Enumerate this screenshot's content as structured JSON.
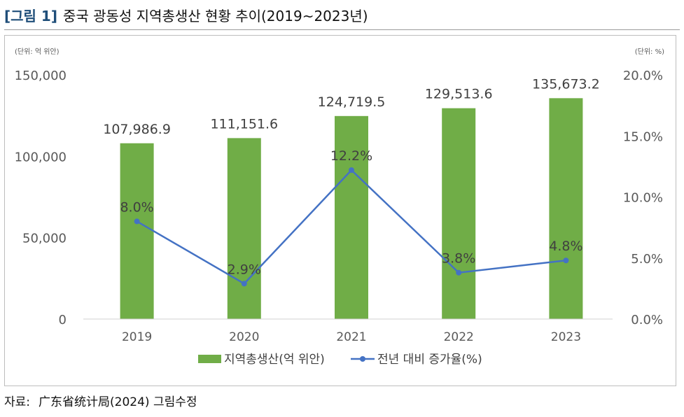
{
  "figure": {
    "tag": "[그림 1]",
    "title": "중국 광동성 지역총생산 현황 추이(2019~2023년)",
    "source_label": "자료:",
    "source_text": "广东省统计局(2024) 그림수정"
  },
  "colors": {
    "bar": "#70ad47",
    "line": "#4472c4",
    "axis_text": "#595959",
    "data_label": "#404040",
    "title_tag": "#1f4e79"
  },
  "chart_data": {
    "type": "bar",
    "categories": [
      "2019",
      "2020",
      "2021",
      "2022",
      "2023"
    ],
    "series": [
      {
        "name": "지역총생산(억 위안)",
        "type": "bar",
        "axis": "left",
        "values": [
          107986.9,
          111151.6,
          124719.5,
          129513.6,
          135673.2
        ],
        "labels": [
          "107,986.9",
          "111,151.6",
          "124,719.5",
          "129,513.6",
          "135,673.2"
        ]
      },
      {
        "name": "전년 대비 증가율(%)",
        "type": "line",
        "axis": "right",
        "values": [
          8.0,
          2.9,
          12.2,
          3.8,
          4.8
        ],
        "labels": [
          "8.0%",
          "2.9%",
          "12.2%",
          "3.8%",
          "4.8%"
        ]
      }
    ],
    "y_left": {
      "unit_label": "(단위: 억 위안)",
      "ticks": [
        "0",
        "50,000",
        "100,000",
        "150,000"
      ],
      "tick_values": [
        0,
        50000,
        100000,
        150000
      ],
      "ylim": [
        0,
        150000
      ]
    },
    "y_right": {
      "unit_label": "(단위: %)",
      "ticks": [
        "0.0%",
        "5.0%",
        "10.0%",
        "15.0%",
        "20.0%"
      ],
      "tick_values": [
        0,
        5,
        10,
        15,
        20
      ],
      "ylim": [
        0,
        20
      ]
    },
    "grid": false,
    "legend_position": "bottom"
  }
}
